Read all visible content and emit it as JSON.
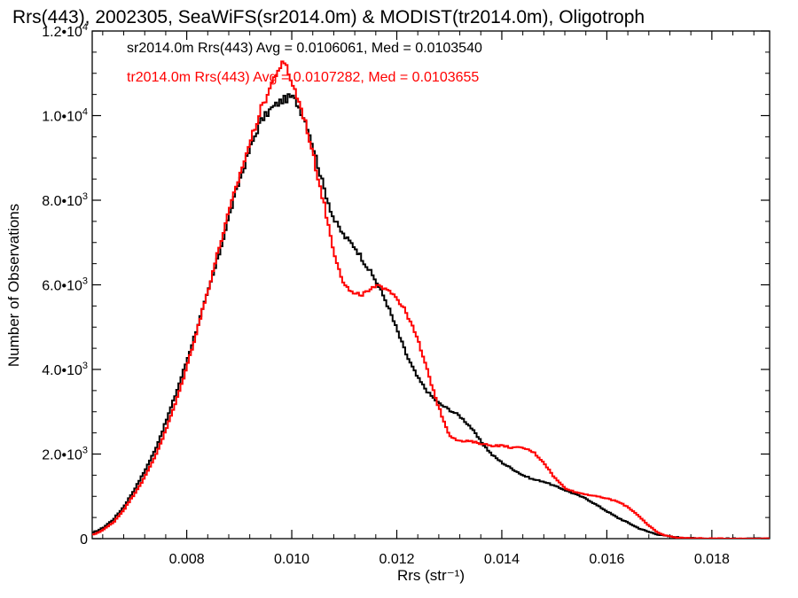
{
  "chart_data": {
    "type": "line",
    "title": "Rrs(443), 2002305, SeaWiFS(sr2014.0m) & MODIST(tr2014.0m), Oligotroph",
    "xlabel": "Rrs (str⁻¹)",
    "ylabel": "Number of Observations",
    "xlim": [
      0.0062,
      0.0191
    ],
    "ylim": [
      0,
      12000
    ],
    "xticks": [
      0.008,
      0.01,
      0.012,
      0.014,
      0.016,
      0.018
    ],
    "xtick_labels": [
      "0.008",
      "0.010",
      "0.012",
      "0.014",
      "0.016",
      "0.018"
    ],
    "yticks": [
      0,
      2000,
      4000,
      6000,
      8000,
      10000,
      12000
    ],
    "ytick_labels": [
      {
        "mant": "0",
        "exp": ""
      },
      {
        "mant": "2.0•10",
        "exp": "3"
      },
      {
        "mant": "4.0•10",
        "exp": "3"
      },
      {
        "mant": "6.0•10",
        "exp": "3"
      },
      {
        "mant": "8.0•10",
        "exp": "3"
      },
      {
        "mant": "1.0•10",
        "exp": "4"
      },
      {
        "mant": "1.2•10",
        "exp": "4"
      }
    ],
    "grid": false,
    "legend_position": "top-left",
    "series": [
      {
        "name": "sr2014.0m Rrs(443) Avg = 0.0106061, Med = 0.0103540",
        "color": "#000000",
        "x": [
          0.0062,
          0.0064,
          0.0066,
          0.0068,
          0.007,
          0.0072,
          0.0074,
          0.0076,
          0.0078,
          0.008,
          0.0082,
          0.0084,
          0.0086,
          0.0088,
          0.009,
          0.0092,
          0.0094,
          0.0096,
          0.0097,
          0.0098,
          0.0099,
          0.01,
          0.0101,
          0.0102,
          0.0103,
          0.0104,
          0.0106,
          0.0108,
          0.011,
          0.0112,
          0.0114,
          0.0116,
          0.0118,
          0.012,
          0.0122,
          0.0124,
          0.0126,
          0.0128,
          0.013,
          0.0132,
          0.0134,
          0.0136,
          0.0138,
          0.014,
          0.0142,
          0.0144,
          0.0146,
          0.0148,
          0.015,
          0.0152,
          0.0154,
          0.0156,
          0.0158,
          0.016,
          0.0162,
          0.0164,
          0.0166,
          0.0168,
          0.017,
          0.0172,
          0.0174,
          0.0176,
          0.0178,
          0.018,
          0.0185,
          0.0191
        ],
        "values": [
          130,
          250,
          450,
          750,
          1150,
          1600,
          2100,
          2750,
          3450,
          4200,
          5000,
          5800,
          6650,
          7600,
          8450,
          9200,
          9850,
          10150,
          10250,
          10350,
          10400,
          10450,
          10300,
          10050,
          9750,
          9300,
          8350,
          7550,
          7150,
          6900,
          6500,
          6100,
          5600,
          4950,
          4300,
          3800,
          3450,
          3200,
          3050,
          2900,
          2650,
          2300,
          2000,
          1800,
          1650,
          1500,
          1400,
          1350,
          1250,
          1150,
          1050,
          950,
          800,
          650,
          500,
          380,
          250,
          160,
          90,
          50,
          25,
          12,
          6,
          3,
          1,
          0
        ]
      },
      {
        "name": "tr2014.0m Rrs(443) Avg = 0.0107282, Med = 0.0103655",
        "color": "#ff0000",
        "x": [
          0.0062,
          0.0064,
          0.0066,
          0.0068,
          0.007,
          0.0072,
          0.0074,
          0.0076,
          0.0078,
          0.008,
          0.0082,
          0.0084,
          0.0086,
          0.0088,
          0.009,
          0.0092,
          0.0094,
          0.0096,
          0.0097,
          0.0098,
          0.0099,
          0.01,
          0.0101,
          0.0102,
          0.0103,
          0.0104,
          0.0106,
          0.0108,
          0.011,
          0.0112,
          0.0114,
          0.0116,
          0.0118,
          0.012,
          0.0122,
          0.0124,
          0.0126,
          0.0128,
          0.013,
          0.0132,
          0.0134,
          0.0136,
          0.0138,
          0.014,
          0.0142,
          0.0144,
          0.0146,
          0.0148,
          0.015,
          0.0152,
          0.0154,
          0.0156,
          0.0158,
          0.016,
          0.0162,
          0.0164,
          0.0166,
          0.0168,
          0.017,
          0.0172,
          0.0174,
          0.0176,
          0.0178,
          0.018,
          0.0185,
          0.0191
        ],
        "values": [
          80,
          200,
          380,
          680,
          1050,
          1450,
          1950,
          2550,
          3250,
          4050,
          4950,
          5850,
          6800,
          7700,
          8550,
          9350,
          10100,
          10700,
          11000,
          11200,
          11150,
          10800,
          10450,
          10100,
          9650,
          9100,
          8000,
          6800,
          6000,
          5750,
          5800,
          5950,
          5950,
          5700,
          5300,
          4700,
          3900,
          3100,
          2450,
          2300,
          2300,
          2250,
          2200,
          2200,
          2150,
          2150,
          2050,
          1800,
          1450,
          1200,
          1100,
          1050,
          1000,
          950,
          880,
          750,
          550,
          300,
          120,
          50,
          20,
          10,
          5,
          2,
          0,
          0
        ]
      }
    ]
  }
}
